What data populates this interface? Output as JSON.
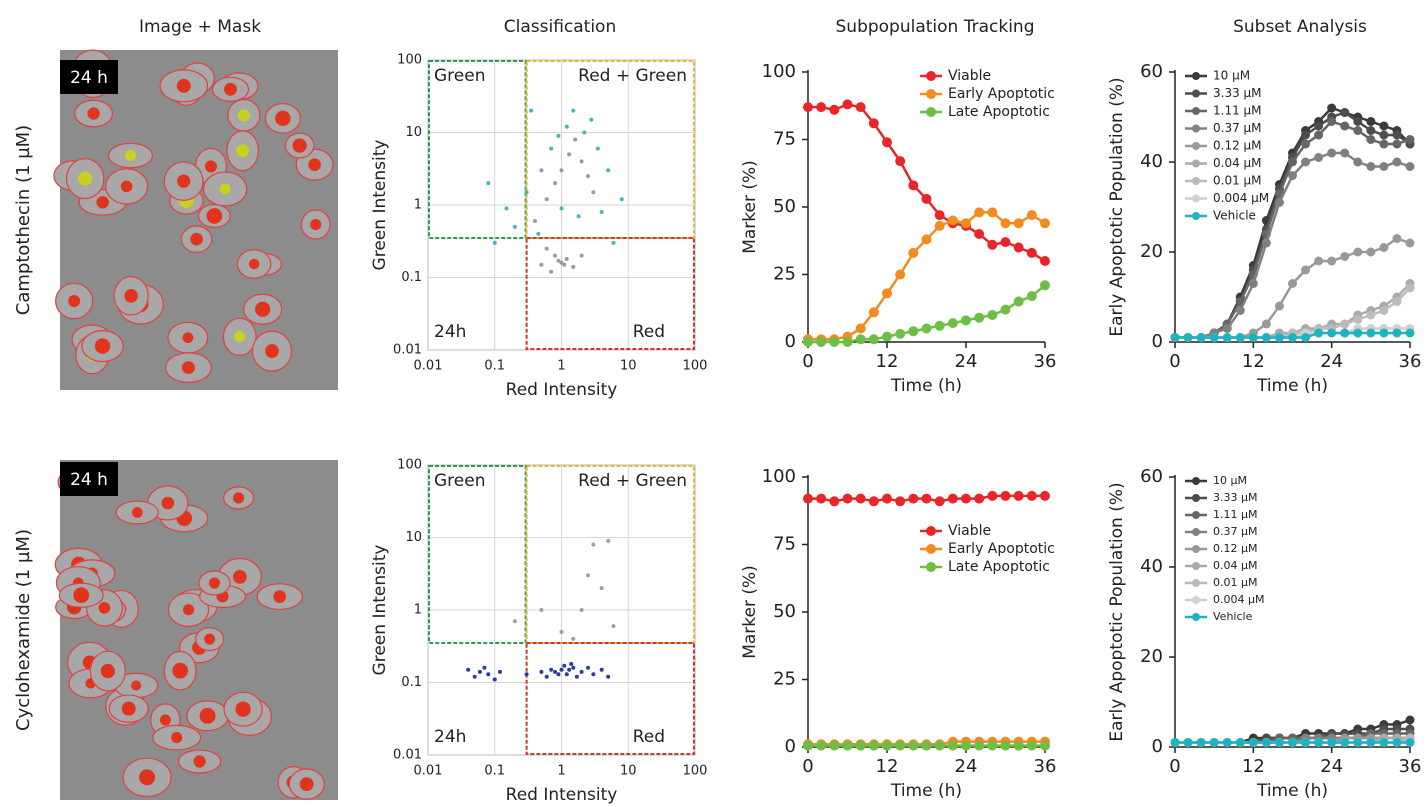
{
  "headers": [
    "Image + Mask",
    "Classification",
    "Subpopulation Tracking",
    "Subset Analysis"
  ],
  "rows": [
    {
      "label": "Camptothecin (1 µM)",
      "image_label": "24 h"
    },
    {
      "label": "Cyclohexamide (1 µM)",
      "image_label": "24 h"
    }
  ],
  "chart_data": [
    {
      "type": "scatter",
      "x_label": "Red Intensity",
      "y_label": "Green Intensity",
      "log": true,
      "grid": true,
      "xlim": [
        0.01,
        100
      ],
      "ylim": [
        0.01,
        100
      ],
      "xticks": [
        0.01,
        0.1,
        1,
        10,
        100
      ],
      "yticks": [
        0.01,
        0.1,
        1,
        10,
        100
      ],
      "x_gate": 0.3,
      "y_gate": 0.35,
      "quadrant_labels": [
        "Green",
        "Red + Green",
        "Red"
      ],
      "time_label": "24h",
      "series": [
        {
          "color": "#9a9a9a",
          "x": [
            0.5,
            0.8,
            1,
            1.2,
            1.5,
            0.7,
            2,
            0.9,
            1.1,
            0.6,
            0.4,
            0.6,
            0.8,
            1,
            1.3,
            1.6,
            2,
            2.5,
            3,
            0.5
          ],
          "values": [
            0.15,
            0.2,
            0.16,
            0.18,
            0.14,
            0.12,
            0.2,
            0.17,
            0.15,
            0.25,
            0.6,
            1.2,
            2,
            3,
            5,
            8,
            4,
            2.5,
            1.5,
            3
          ]
        },
        {
          "color": "#3fb8c0",
          "x": [
            0.7,
            1.2,
            1.5,
            0.9,
            2.2,
            3.5,
            5,
            0.3,
            0.2,
            0.15,
            0.1,
            0.08,
            4,
            6,
            1.8,
            0.45,
            1,
            2.8,
            0.35,
            8
          ],
          "values": [
            6,
            12,
            20,
            9,
            10,
            6,
            3,
            1.5,
            0.5,
            0.9,
            0.3,
            2,
            0.8,
            0.3,
            0.7,
            0.4,
            0.9,
            15,
            20,
            1.2
          ]
        }
      ]
    },
    {
      "type": "line",
      "x_label": "Time (h)",
      "y_label": "Marker (%)",
      "xlim": [
        0,
        36
      ],
      "ylim": [
        0,
        100
      ],
      "xticks": [
        0,
        12,
        24,
        36
      ],
      "yticks": [
        0,
        25,
        50,
        75,
        100
      ],
      "legend_position": "upper right",
      "x": [
        0,
        2,
        4,
        6,
        8,
        10,
        12,
        14,
        16,
        18,
        20,
        22,
        24,
        26,
        28,
        30,
        32,
        34,
        36
      ],
      "series": [
        {
          "name": "Viable",
          "color": "#e8262a",
          "values": [
            87,
            87,
            86,
            88,
            87,
            81,
            74,
            67,
            58,
            53,
            47,
            44,
            43,
            40,
            36,
            37,
            35,
            33,
            30
          ]
        },
        {
          "name": "Early Apoptotic",
          "color": "#f58a1f",
          "values": [
            1,
            1,
            1,
            2,
            5,
            11,
            18,
            25,
            33,
            38,
            43,
            45,
            44,
            48,
            48,
            44,
            44,
            47,
            44
          ]
        },
        {
          "name": "Late Apoptotic",
          "color": "#6cbf44",
          "values": [
            0,
            0,
            0,
            0,
            1,
            1,
            2,
            3,
            4,
            5,
            6,
            7,
            8,
            9,
            10,
            12,
            15,
            17,
            21
          ]
        }
      ]
    },
    {
      "type": "line",
      "x_label": "Time (h)",
      "y_label": "Early Apoptotic Population (%)",
      "xlim": [
        0,
        36
      ],
      "ylim": [
        0,
        60
      ],
      "xticks": [
        0,
        12,
        24,
        36
      ],
      "yticks": [
        0,
        20,
        40,
        60
      ],
      "legend_position": "upper left",
      "x": [
        0,
        2,
        4,
        6,
        8,
        10,
        12,
        14,
        16,
        18,
        20,
        22,
        24,
        26,
        28,
        30,
        32,
        34,
        36
      ],
      "series": [
        {
          "name": "10 μM",
          "color": "#3a3a3a",
          "values": [
            1,
            1,
            1,
            2,
            4,
            10,
            17,
            27,
            35,
            42,
            47,
            49,
            52,
            51,
            50,
            49,
            48,
            47,
            44
          ]
        },
        {
          "name": "3.33 μM",
          "color": "#4d4d4d",
          "values": [
            1,
            1,
            1,
            2,
            4,
            9,
            16,
            25,
            34,
            41,
            46,
            48,
            50,
            51,
            49,
            47,
            46,
            46,
            44
          ]
        },
        {
          "name": "1.11 μM",
          "color": "#666666",
          "values": [
            1,
            1,
            1,
            2,
            4,
            9,
            15,
            24,
            33,
            40,
            44,
            46,
            49,
            48,
            47,
            45,
            44,
            44,
            45
          ]
        },
        {
          "name": "0.37 μM",
          "color": "#808080",
          "values": [
            1,
            1,
            1,
            2,
            3,
            7,
            13,
            22,
            31,
            37,
            40,
            41,
            42,
            42,
            40,
            39,
            39,
            40,
            39
          ]
        },
        {
          "name": "0.12 μM",
          "color": "#999999",
          "values": [
            1,
            1,
            1,
            1,
            1,
            1,
            2,
            4,
            8,
            13,
            16,
            18,
            18,
            19,
            20,
            20,
            21,
            23,
            22
          ]
        },
        {
          "name": "0.04 μM",
          "color": "#aaaaaa",
          "values": [
            1,
            1,
            1,
            1,
            1,
            1,
            1,
            1,
            2,
            2,
            3,
            3,
            4,
            4,
            6,
            7,
            8,
            10,
            13
          ]
        },
        {
          "name": "0.01 μM",
          "color": "#bbbbbb",
          "values": [
            1,
            1,
            1,
            1,
            1,
            1,
            1,
            1,
            1,
            2,
            2,
            3,
            3,
            4,
            5,
            6,
            7,
            9,
            12
          ]
        },
        {
          "name": "0.004 μM",
          "color": "#d0d0d0",
          "values": [
            1,
            1,
            1,
            1,
            1,
            1,
            1,
            1,
            1,
            1,
            2,
            2,
            2,
            2,
            3,
            3,
            3,
            3,
            3
          ]
        },
        {
          "name": "Vehicle",
          "color": "#1fb3c0",
          "values": [
            1,
            1,
            1,
            1,
            1,
            1,
            1,
            1,
            1,
            1,
            1,
            2,
            2,
            2,
            2,
            2,
            2,
            2,
            2
          ]
        }
      ]
    },
    {
      "type": "scatter",
      "x_label": "Red Intensity",
      "y_label": "Green Intensity",
      "log": true,
      "grid": true,
      "xlim": [
        0.01,
        100
      ],
      "ylim": [
        0.01,
        100
      ],
      "xticks": [
        0.01,
        0.1,
        1,
        10,
        100
      ],
      "yticks": [
        0.01,
        0.1,
        1,
        10,
        100
      ],
      "x_gate": 0.3,
      "y_gate": 0.35,
      "quadrant_labels": [
        "Green",
        "Red + Green",
        "Red"
      ],
      "time_label": "24h",
      "series": [
        {
          "color": "#2a3f9a",
          "x": [
            0.8,
            1,
            1.2,
            1.5,
            0.6,
            2,
            1.1,
            0.9,
            1.3,
            0.7,
            2.5,
            3,
            0.5,
            1.7,
            1.4,
            0.06,
            0.05,
            0.07,
            0.08,
            0.04,
            0.1,
            0.12,
            4,
            5,
            0.3
          ],
          "values": [
            0.14,
            0.15,
            0.13,
            0.16,
            0.12,
            0.14,
            0.17,
            0.13,
            0.15,
            0.15,
            0.16,
            0.13,
            0.14,
            0.12,
            0.18,
            0.14,
            0.12,
            0.16,
            0.13,
            0.15,
            0.11,
            0.14,
            0.15,
            0.12,
            0.13
          ]
        },
        {
          "color": "#a0a0a0",
          "x": [
            1,
            2,
            3,
            4,
            1.5,
            5,
            2.5,
            0.5,
            6,
            0.2
          ],
          "values": [
            0.5,
            1,
            8,
            2,
            0.4,
            9,
            3,
            1,
            0.6,
            0.7
          ]
        }
      ]
    },
    {
      "type": "line",
      "x_label": "Time (h)",
      "y_label": "Marker (%)",
      "xlim": [
        0,
        36
      ],
      "ylim": [
        0,
        100
      ],
      "xticks": [
        0,
        12,
        24,
        36
      ],
      "yticks": [
        0,
        25,
        50,
        75,
        100
      ],
      "legend_position": "center right",
      "x": [
        0,
        2,
        4,
        6,
        8,
        10,
        12,
        14,
        16,
        18,
        20,
        22,
        24,
        26,
        28,
        30,
        32,
        34,
        36
      ],
      "series": [
        {
          "name": "Viable",
          "color": "#e8262a",
          "values": [
            92,
            92,
            91,
            92,
            92,
            91,
            92,
            91,
            92,
            92,
            91,
            92,
            92,
            92,
            93,
            93,
            93,
            93,
            93
          ]
        },
        {
          "name": "Early Apoptotic",
          "color": "#f58a1f",
          "values": [
            1,
            1,
            1,
            1,
            1,
            1,
            1,
            1,
            1,
            1,
            1,
            2,
            2,
            2,
            2,
            2,
            2,
            2,
            2
          ]
        },
        {
          "name": "Late Apoptotic",
          "color": "#6cbf44",
          "values": [
            0.5,
            0.5,
            0.5,
            0.5,
            0.5,
            0.5,
            0.5,
            0.5,
            0.5,
            0.5,
            0.5,
            0.5,
            0.5,
            0.5,
            0.5,
            0.5,
            0.5,
            0.5,
            0.5
          ]
        }
      ]
    },
    {
      "type": "line",
      "x_label": "Time (h)",
      "y_label": "Early Apoptotic Population (%)",
      "xlim": [
        0,
        36
      ],
      "ylim": [
        0,
        60
      ],
      "xticks": [
        0,
        12,
        24,
        36
      ],
      "yticks": [
        0,
        20,
        40,
        60
      ],
      "legend_position": "upper left",
      "x": [
        0,
        2,
        4,
        6,
        8,
        10,
        12,
        14,
        16,
        18,
        20,
        22,
        24,
        26,
        28,
        30,
        32,
        34,
        36
      ],
      "series": [
        {
          "name": "10 μM",
          "color": "#3a3a3a",
          "values": [
            1,
            1,
            1,
            1,
            1,
            1,
            2,
            2,
            2,
            2,
            3,
            3,
            3,
            3,
            4,
            4,
            5,
            5,
            6
          ]
        },
        {
          "name": "3.33 μM",
          "color": "#4d4d4d",
          "values": [
            1,
            1,
            1,
            1,
            1,
            1,
            1,
            2,
            2,
            2,
            2,
            2,
            3,
            3,
            3,
            3,
            4,
            4,
            4
          ]
        },
        {
          "name": "1.11 μM",
          "color": "#666666",
          "values": [
            1,
            1,
            1,
            1,
            1,
            1,
            1,
            1,
            2,
            2,
            2,
            2,
            2,
            2,
            2,
            3,
            3,
            3,
            3
          ]
        },
        {
          "name": "0.37 μM",
          "color": "#808080",
          "values": [
            1,
            1,
            1,
            1,
            1,
            1,
            1,
            1,
            1,
            1,
            2,
            2,
            2,
            2,
            2,
            2,
            2,
            2,
            2
          ]
        },
        {
          "name": "0.12 μM",
          "color": "#999999",
          "values": [
            1,
            1,
            1,
            1,
            1,
            1,
            1,
            1,
            1,
            1,
            1,
            1,
            1,
            2,
            2,
            2,
            2,
            2,
            2
          ]
        },
        {
          "name": "0.04 μM",
          "color": "#aaaaaa",
          "values": [
            1,
            1,
            1,
            1,
            1,
            1,
            1,
            1,
            1,
            1,
            1,
            1,
            1,
            1,
            1,
            1,
            2,
            2,
            2
          ]
        },
        {
          "name": "0.01 μM",
          "color": "#bbbbbb",
          "values": [
            1,
            1,
            1,
            1,
            1,
            1,
            1,
            1,
            1,
            1,
            1,
            1,
            1,
            1,
            1,
            1,
            1,
            1,
            2
          ]
        },
        {
          "name": "0.004 μM",
          "color": "#d0d0d0",
          "values": [
            1,
            1,
            1,
            1,
            1,
            1,
            1,
            1,
            1,
            1,
            1,
            1,
            1,
            1,
            1,
            1,
            1,
            1,
            1
          ]
        },
        {
          "name": "Vehicle",
          "color": "#1fb3c0",
          "values": [
            1,
            1,
            1,
            1,
            1,
            1,
            1,
            1,
            1,
            1,
            1,
            1,
            1,
            1,
            1,
            1,
            1,
            1,
            1
          ]
        }
      ]
    }
  ]
}
